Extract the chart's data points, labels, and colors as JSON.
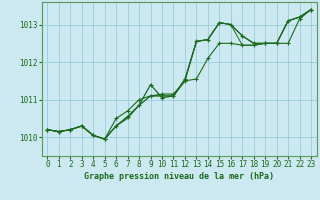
{
  "title": "Graphe pression niveau de la mer (hPa)",
  "bg_color": "#cce8f0",
  "grid_color": "#99ccdd",
  "line_color": "#1a6b1a",
  "text_color": "#1a6b1a",
  "border_color": "#5a9a5a",
  "xlim": [
    -0.5,
    23.5
  ],
  "ylim": [
    1009.5,
    1013.6
  ],
  "yticks": [
    1010,
    1011,
    1012,
    1013
  ],
  "xticks": [
    0,
    1,
    2,
    3,
    4,
    5,
    6,
    7,
    8,
    9,
    10,
    11,
    12,
    13,
    14,
    15,
    16,
    17,
    18,
    19,
    20,
    21,
    22,
    23
  ],
  "series1": [
    1010.2,
    1010.15,
    1010.2,
    1010.3,
    1010.05,
    1009.95,
    1010.3,
    1010.55,
    1010.85,
    1011.4,
    1011.05,
    1011.1,
    1011.55,
    1012.55,
    1012.6,
    1013.05,
    1013.0,
    1012.7,
    1012.5,
    1012.5,
    1012.5,
    1013.1,
    1013.2,
    1013.4
  ],
  "series2": [
    1010.2,
    1010.15,
    1010.2,
    1010.3,
    1010.05,
    1009.95,
    1010.5,
    1010.7,
    1011.0,
    1011.1,
    1011.15,
    1011.15,
    1011.5,
    1011.55,
    1012.1,
    1012.5,
    1012.5,
    1012.45,
    1012.45,
    1012.5,
    1012.5,
    1012.5,
    1013.15,
    1013.4
  ],
  "series3": [
    1010.2,
    1010.15,
    1010.2,
    1010.3,
    1010.05,
    1009.95,
    1010.3,
    1010.5,
    1010.85,
    1011.1,
    1011.1,
    1011.1,
    1011.5,
    1012.55,
    1012.6,
    1013.05,
    1013.0,
    1012.45,
    1012.45,
    1012.5,
    1012.5,
    1013.1,
    1013.2,
    1013.4
  ],
  "series4": [
    1010.2,
    1010.15,
    1010.2,
    1010.3,
    1010.05,
    1009.95,
    1010.3,
    1010.55,
    1010.85,
    1011.1,
    1011.1,
    1011.1,
    1011.5,
    1012.55,
    1012.6,
    1013.05,
    1013.0,
    1012.7,
    1012.5,
    1012.5,
    1012.5,
    1013.1,
    1013.2,
    1013.4
  ],
  "xlabel_fontsize": 6.0,
  "tick_fontsize": 5.5
}
